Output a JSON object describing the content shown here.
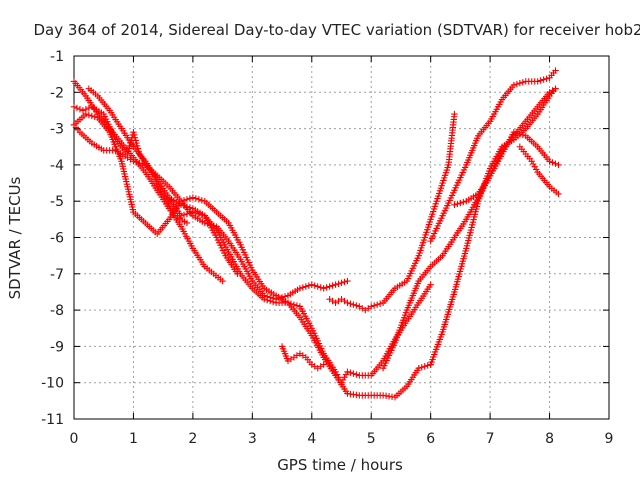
{
  "chart_data": {
    "type": "scatter",
    "title": "Day 364 of 2014, Sidereal Day-to-day VTEC variation (SDTVAR) for receiver hob2",
    "xlabel": "GPS time / hours",
    "ylabel": "SDTVAR / TECUs",
    "xlim": [
      0,
      9
    ],
    "ylim": [
      -11,
      -1
    ],
    "x_ticks": [
      0,
      1,
      2,
      3,
      4,
      5,
      6,
      7,
      8,
      9
    ],
    "y_ticks": [
      -1,
      -2,
      -3,
      -4,
      -5,
      -6,
      -7,
      -8,
      -9,
      -10,
      -11
    ],
    "grid": true,
    "marker": "+",
    "color": "#ff0000",
    "series": [
      {
        "x": [
          0.0,
          0.2,
          0.4,
          0.6,
          0.8,
          1.0,
          1.2,
          1.4,
          1.6,
          1.8,
          2.0,
          2.2,
          2.5
        ],
        "y": [
          -1.7,
          -2.1,
          -2.6,
          -3.0,
          -3.4,
          -3.8,
          -4.2,
          -4.7,
          -5.2,
          -5.7,
          -6.3,
          -6.8,
          -7.2
        ]
      },
      {
        "x": [
          0.0,
          0.15,
          0.3,
          0.5,
          0.7,
          0.9,
          1.0,
          1.1,
          1.3,
          1.5,
          1.7,
          1.9
        ],
        "y": [
          -2.4,
          -2.5,
          -2.4,
          -2.6,
          -3.3,
          -3.7,
          -3.1,
          -3.7,
          -4.2,
          -4.8,
          -5.4,
          -5.6
        ]
      },
      {
        "x": [
          0.25,
          0.4,
          0.6,
          0.8,
          1.0,
          1.2,
          1.4,
          1.6,
          1.8,
          2.0,
          2.2,
          2.4,
          2.55,
          2.75
        ],
        "y": [
          -1.9,
          -2.1,
          -2.5,
          -3.0,
          -3.5,
          -3.9,
          -4.4,
          -4.9,
          -5.4,
          -5.3,
          -5.4,
          -6.0,
          -6.5,
          -7.0
        ]
      },
      {
        "x": [
          0.0,
          0.1,
          0.3,
          0.5,
          0.7,
          0.9,
          1.0,
          1.2,
          1.4,
          1.6,
          1.8,
          2.0,
          2.2,
          2.4,
          2.6,
          2.8,
          3.0,
          3.2,
          3.4,
          3.6,
          3.8,
          4.0,
          4.2,
          4.4,
          4.6
        ],
        "y": [
          -2.9,
          -3.1,
          -3.4,
          -3.6,
          -3.6,
          -3.8,
          -3.9,
          -4.0,
          -4.3,
          -4.6,
          -5.0,
          -5.4,
          -5.6,
          -5.7,
          -6.1,
          -6.6,
          -7.2,
          -7.6,
          -7.7,
          -7.6,
          -7.4,
          -7.3,
          -7.4,
          -7.3,
          -7.2
        ]
      },
      {
        "x": [
          0.0,
          0.2,
          0.4,
          0.6,
          0.8,
          0.9,
          1.0,
          1.2,
          1.4,
          1.6,
          1.8,
          2.0,
          2.2,
          2.4,
          2.6,
          2.8,
          3.0,
          3.2,
          3.4,
          3.6,
          3.8,
          4.0,
          4.2,
          4.4,
          4.6,
          4.8,
          5.0,
          5.2,
          5.4,
          5.6,
          5.8,
          6.0
        ],
        "y": [
          -2.9,
          -2.6,
          -2.7,
          -3.1,
          -3.9,
          -4.6,
          -5.3,
          -5.6,
          -5.9,
          -5.5,
          -5.0,
          -4.9,
          -5.0,
          -5.3,
          -5.6,
          -6.2,
          -6.9,
          -7.4,
          -7.6,
          -7.8,
          -8.2,
          -8.7,
          -9.3,
          -9.8,
          -10.3,
          -10.35,
          -10.35,
          -10.35,
          -10.4,
          -10.1,
          -9.6,
          -9.5
        ]
      },
      {
        "x": [
          1.6,
          1.8,
          2.0,
          2.2,
          2.4,
          2.6,
          2.8,
          3.0,
          3.2,
          3.4,
          3.6,
          3.8,
          4.0,
          4.2,
          4.4,
          4.5,
          4.6,
          4.8,
          5.0,
          5.2,
          5.4,
          5.6,
          5.8,
          6.0
        ],
        "y": [
          -4.9,
          -5.1,
          -5.2,
          -5.4,
          -5.8,
          -6.4,
          -7.0,
          -7.4,
          -7.7,
          -7.8,
          -7.8,
          -7.9,
          -8.5,
          -9.2,
          -9.7,
          -10.0,
          -9.7,
          -9.8,
          -9.8,
          -9.4,
          -8.8,
          -8.3,
          -7.8,
          -7.3
        ]
      },
      {
        "x": [
          3.5,
          3.6,
          3.7,
          3.8,
          3.9,
          4.0,
          4.1,
          4.2
        ],
        "y": [
          -9.0,
          -9.4,
          -9.3,
          -9.2,
          -9.3,
          -9.5,
          -9.6,
          -9.5
        ]
      },
      {
        "x": [
          4.3,
          4.4,
          4.5,
          4.6,
          4.8,
          4.9,
          5.0,
          5.2,
          5.4,
          5.6,
          5.8,
          5.9,
          6.1,
          6.3,
          6.4
        ],
        "y": [
          -7.7,
          -7.8,
          -7.7,
          -7.8,
          -7.9,
          -8.0,
          -7.9,
          -7.8,
          -7.4,
          -7.2,
          -6.5,
          -6.0,
          -5.0,
          -4.0,
          -2.6
        ]
      },
      {
        "x": [
          5.2,
          5.4,
          5.6,
          5.8,
          6.0,
          6.2,
          6.4,
          6.6,
          6.8,
          7.0,
          7.2,
          7.4,
          7.6,
          7.8,
          8.0,
          8.1
        ],
        "y": [
          -9.6,
          -8.9,
          -8.0,
          -7.2,
          -6.8,
          -6.5,
          -6.0,
          -5.5,
          -4.9,
          -4.3,
          -3.6,
          -3.2,
          -2.8,
          -2.4,
          -2.0,
          -1.9
        ]
      },
      {
        "x": [
          6.0,
          6.2,
          6.4,
          6.6,
          6.8,
          7.0,
          7.2,
          7.4,
          7.6,
          7.8,
          8.0,
          8.1
        ],
        "y": [
          -6.1,
          -5.4,
          -4.7,
          -4.0,
          -3.2,
          -2.8,
          -2.2,
          -1.8,
          -1.7,
          -1.7,
          -1.6,
          -1.4
        ]
      },
      {
        "x": [
          6.0,
          6.2,
          6.4,
          6.6,
          6.8,
          7.0,
          7.2,
          7.4,
          7.6,
          7.8,
          8.0,
          8.1
        ],
        "y": [
          -9.5,
          -8.6,
          -7.5,
          -6.3,
          -5.0,
          -4.1,
          -3.5,
          -3.3,
          -3.0,
          -2.6,
          -2.1,
          -1.9
        ]
      },
      {
        "x": [
          6.4,
          6.6,
          6.8,
          7.0,
          7.2,
          7.4,
          7.6,
          7.8,
          8.0,
          8.15
        ],
        "y": [
          -5.1,
          -5.0,
          -4.8,
          -4.3,
          -3.7,
          -3.1,
          -3.2,
          -3.5,
          -3.9,
          -4.0
        ]
      },
      {
        "x": [
          7.5,
          7.6,
          7.7,
          7.8,
          8.0,
          8.15
        ],
        "y": [
          -3.5,
          -3.7,
          -3.9,
          -4.2,
          -4.6,
          -4.8
        ]
      }
    ]
  }
}
